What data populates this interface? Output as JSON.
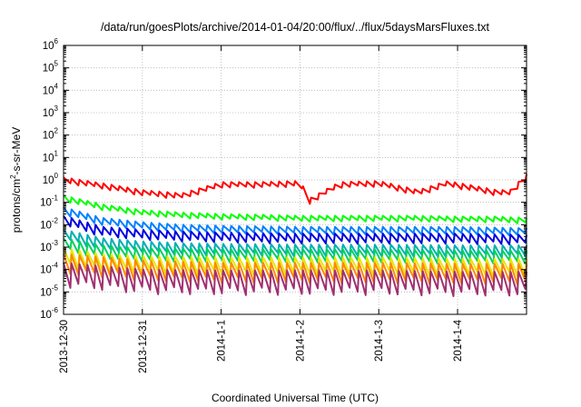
{
  "chart_data": {
    "type": "line",
    "title": "/data/run/goesPlots/archive/2014-01-04/20:00/flux/../flux/5daysMarsFluxes.txt",
    "xlabel": "Coordinated Universal Time (UTC)",
    "ylabel": {
      "pre": "protons/cm",
      "sup": "2",
      "post": "-s-sr-MeV"
    },
    "x_range": [
      "2013-12-30",
      "2014-01-04T21:00"
    ],
    "x_ticks": [
      "2013-12-30",
      "2013-12-31",
      "2014-1-1",
      "2014-1-2",
      "2014-1-3",
      "2014-1-4"
    ],
    "y_scale": "log",
    "ylim": [
      1e-06,
      1000000.0
    ],
    "y_ticks": [
      {
        "base": "10",
        "exp": "-6",
        "value": 1e-06
      },
      {
        "base": "10",
        "exp": "-5",
        "value": 1e-05
      },
      {
        "base": "10",
        "exp": "-4",
        "value": 0.0001
      },
      {
        "base": "10",
        "exp": "-3",
        "value": 0.001
      },
      {
        "base": "10",
        "exp": "-2",
        "value": 0.01
      },
      {
        "base": "10",
        "exp": "-1",
        "value": 0.1
      },
      {
        "base": "10",
        "exp": "0",
        "value": 1
      },
      {
        "base": "10",
        "exp": "1",
        "value": 10
      },
      {
        "base": "10",
        "exp": "2",
        "value": 100
      },
      {
        "base": "10",
        "exp": "3",
        "value": 1000
      },
      {
        "base": "10",
        "exp": "4",
        "value": 10000
      },
      {
        "base": "10",
        "exp": "5",
        "value": 100000
      },
      {
        "base": "10",
        "exp": "6",
        "value": 1000000
      }
    ],
    "grid": true,
    "series": [
      {
        "color": "#ff0000",
        "x": [
          "2013-12-30T00:00",
          "2013-12-30T12:00",
          "2013-12-31T00:00",
          "2013-12-31T12:00",
          "2014-01-01T00:00",
          "2014-01-01T12:00",
          "2014-01-02T00:00",
          "2014-01-02T03:00",
          "2014-01-02T12:00",
          "2014-01-03T00:00",
          "2014-01-03T12:00",
          "2014-01-03T21:00",
          "2014-01-04T12:00",
          "2014-01-04T16:00",
          "2014-01-04T21:00"
        ],
        "values": [
          1.3,
          0.7,
          0.35,
          0.25,
          0.8,
          0.8,
          0.9,
          0.15,
          0.8,
          0.9,
          0.35,
          0.9,
          0.35,
          0.35,
          1.8
        ],
        "tooth_low": 0.55
      },
      {
        "color": "#00ff00",
        "x": [
          "2013-12-30T00:00",
          "2013-12-30T12:00",
          "2013-12-31T00:00",
          "2013-12-31T12:00",
          "2014-01-01T00:00",
          "2014-01-01T12:00",
          "2014-01-02T00:00",
          "2014-01-02T12:00",
          "2014-01-03T00:00",
          "2014-01-03T12:00",
          "2014-01-04T00:00",
          "2014-01-04T12:00",
          "2014-01-04T21:00"
        ],
        "values": [
          0.2,
          0.08,
          0.045,
          0.035,
          0.03,
          0.028,
          0.025,
          0.025,
          0.025,
          0.025,
          0.023,
          0.023,
          0.02
        ],
        "tooth_low": 0.55
      },
      {
        "color": "#0080ff",
        "x": [
          "2013-12-30T00:00",
          "2013-12-30T12:00",
          "2013-12-31T00:00",
          "2013-12-31T12:00",
          "2014-01-01T00:00",
          "2014-01-02T00:00",
          "2014-01-03T00:00",
          "2014-01-04T00:00",
          "2014-01-04T21:00"
        ],
        "values": [
          0.06,
          0.02,
          0.013,
          0.01,
          0.009,
          0.008,
          0.008,
          0.008,
          0.007
        ],
        "tooth_low": 0.45
      },
      {
        "color": "#0000e0",
        "x": [
          "2013-12-30T00:00",
          "2013-12-30T12:00",
          "2013-12-31T00:00",
          "2013-12-31T12:00",
          "2014-01-01T00:00",
          "2014-01-02T00:00",
          "2014-01-03T00:00",
          "2014-01-04T00:00",
          "2014-01-04T21:00"
        ],
        "values": [
          0.025,
          0.008,
          0.006,
          0.005,
          0.0045,
          0.004,
          0.004,
          0.004,
          0.0035
        ],
        "tooth_low": 0.35
      },
      {
        "color": "#00b0b0",
        "x": [
          "2013-12-30T00:00",
          "2013-12-30T12:00",
          "2013-12-31T00:00",
          "2013-12-31T12:00",
          "2014-01-01T00:00",
          "2014-01-02T00:00",
          "2014-01-03T00:00",
          "2014-01-04T00:00",
          "2014-01-04T21:00"
        ],
        "values": [
          0.006,
          0.0025,
          0.0018,
          0.0015,
          0.0014,
          0.0013,
          0.0013,
          0.0012,
          0.0012
        ],
        "tooth_low": 0.3
      },
      {
        "color": "#00d060",
        "x": [
          "2013-12-30T00:00",
          "2013-12-30T12:00",
          "2013-12-31T00:00",
          "2014-01-01T00:00",
          "2014-01-02T00:00",
          "2014-01-03T00:00",
          "2014-01-04T00:00",
          "2014-01-04T21:00"
        ],
        "values": [
          0.0025,
          0.0012,
          0.0009,
          0.0008,
          0.0008,
          0.0008,
          0.0007,
          0.0007
        ],
        "tooth_low": 0.25
      },
      {
        "color": "#e6e600",
        "x": [
          "2013-12-30T00:00",
          "2013-12-30T12:00",
          "2013-12-31T00:00",
          "2014-01-01T00:00",
          "2014-01-02T00:00",
          "2014-01-03T00:00",
          "2014-01-04T00:00",
          "2014-01-04T21:00"
        ],
        "values": [
          0.0009,
          0.0005,
          0.0004,
          0.00035,
          0.00035,
          0.00035,
          0.0003,
          0.0003
        ],
        "tooth_low": 0.15
      },
      {
        "color": "#ff8800",
        "x": [
          "2013-12-30T00:00",
          "2013-12-31T00:00",
          "2014-01-01T00:00",
          "2014-01-02T00:00",
          "2014-01-03T00:00",
          "2014-01-04T00:00",
          "2014-01-04T21:00"
        ],
        "values": [
          0.0005,
          0.00025,
          0.0002,
          0.0002,
          0.0002,
          0.00018,
          0.00018
        ],
        "tooth_low": 0.12
      },
      {
        "color": "#a03070",
        "x": [
          "2013-12-30T00:00",
          "2013-12-31T00:00",
          "2014-01-01T00:00",
          "2014-01-02T00:00",
          "2014-01-03T00:00",
          "2014-01-04T00:00",
          "2014-01-04T21:00"
        ],
        "values": [
          0.0002,
          0.0001,
          9e-05,
          9e-05,
          9e-05,
          8e-05,
          8e-05
        ],
        "tooth_low": 0.08
      }
    ]
  }
}
